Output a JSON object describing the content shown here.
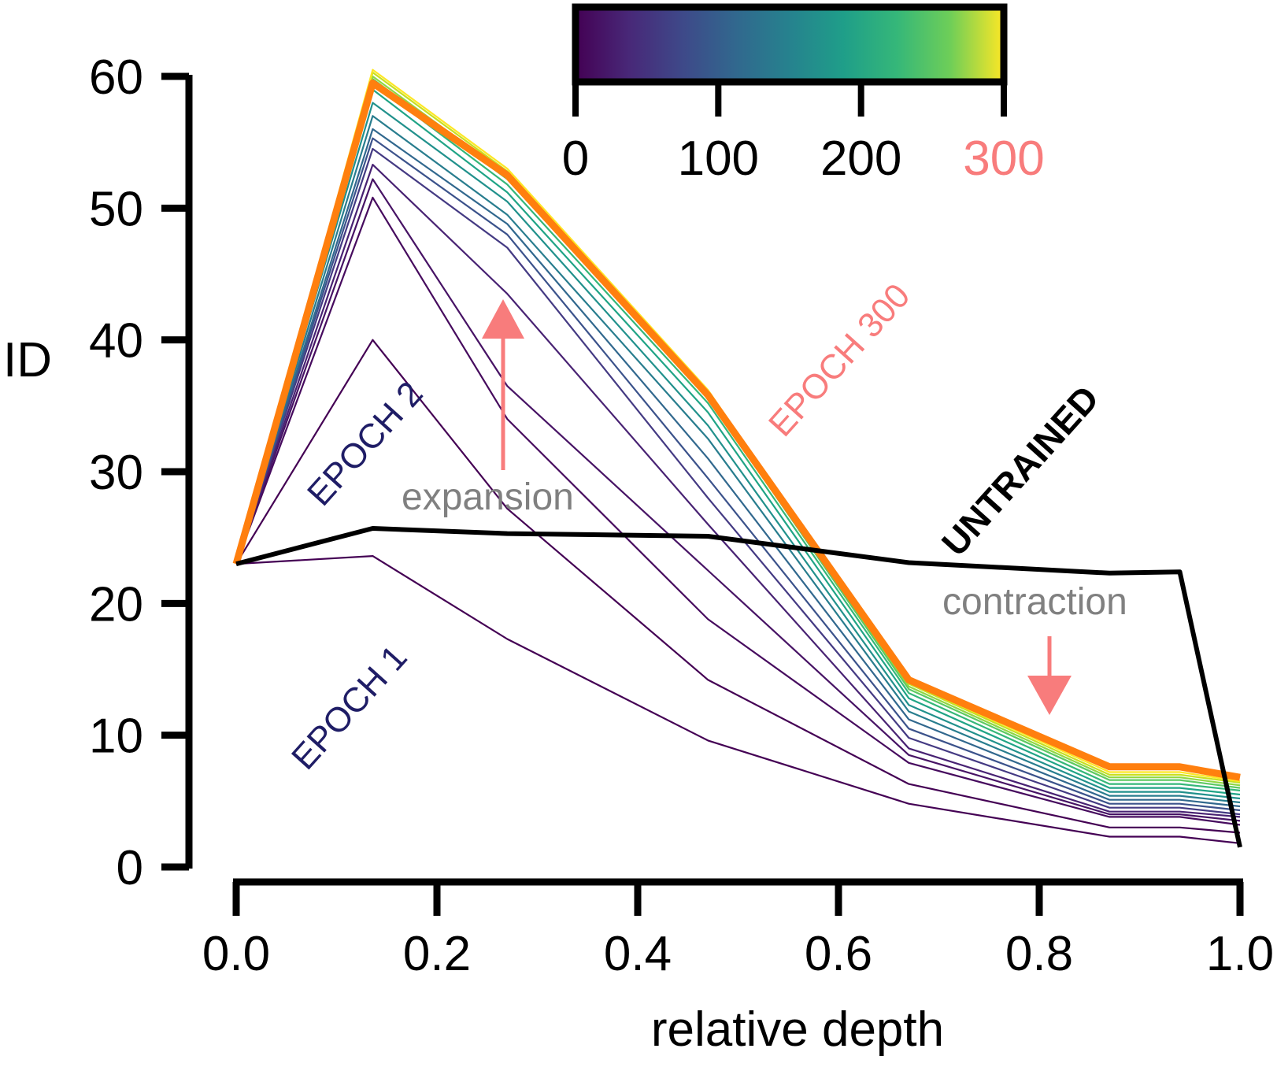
{
  "chart_data": {
    "type": "line",
    "xlabel": "relative depth",
    "ylabel": "ID",
    "xlim": [
      0,
      1
    ],
    "ylim": [
      0,
      60
    ],
    "x_ticks": [
      "0.0",
      "0.2",
      "0.4",
      "0.6",
      "0.8",
      "1.0"
    ],
    "y_ticks": [
      "0",
      "10",
      "20",
      "30",
      "40",
      "50",
      "60"
    ],
    "x": [
      0.0,
      0.136,
      0.27,
      0.47,
      0.67,
      0.87,
      0.94,
      1.0
    ],
    "series": [
      {
        "name": "UNTRAINED",
        "color": "#000000",
        "values": [
          23.0,
          25.7,
          25.3,
          25.1,
          23.1,
          22.3,
          22.4,
          1.5
        ]
      },
      {
        "name": "EPOCH 1",
        "color": "#440154",
        "values": [
          23.0,
          23.6,
          17.3,
          9.6,
          4.8,
          2.3,
          2.3,
          1.8
        ]
      },
      {
        "name": "EPOCH 2",
        "color": "#440154",
        "values": [
          23.0,
          40.0,
          27.2,
          14.2,
          6.3,
          3.0,
          3.0,
          2.6
        ]
      },
      {
        "color": "#460b5e",
        "values": [
          23.0,
          50.8,
          34.0,
          18.8,
          7.9,
          3.8,
          3.8,
          3.2
        ]
      },
      {
        "color": "#471365",
        "values": [
          23.0,
          52.2,
          36.5,
          22.5,
          8.5,
          4.0,
          4.0,
          3.5
        ]
      },
      {
        "color": "#482273",
        "values": [
          23.0,
          53.3,
          43.5,
          26.0,
          9.0,
          4.2,
          4.2,
          3.8
        ]
      },
      {
        "color": "#443a83",
        "values": [
          23.0,
          54.5,
          47.0,
          28.0,
          9.8,
          4.5,
          4.5,
          4.0
        ]
      },
      {
        "color": "#3b528b",
        "values": [
          23.0,
          55.3,
          48.0,
          29.5,
          10.5,
          4.8,
          4.8,
          4.3
        ]
      },
      {
        "color": "#31688e",
        "values": [
          23.0,
          56.0,
          48.8,
          31.0,
          11.2,
          5.1,
          5.1,
          4.6
        ]
      },
      {
        "color": "#287d8e",
        "values": [
          23.0,
          57.0,
          49.5,
          32.5,
          11.8,
          5.4,
          5.4,
          4.9
        ]
      },
      {
        "color": "#21918c",
        "values": [
          23.0,
          58.0,
          50.5,
          33.5,
          12.3,
          5.7,
          5.7,
          5.2
        ]
      },
      {
        "color": "#20a486",
        "values": [
          23.0,
          59.0,
          51.2,
          34.5,
          12.8,
          6.0,
          6.0,
          5.5
        ]
      },
      {
        "color": "#35b779",
        "values": [
          23.0,
          59.5,
          51.8,
          35.2,
          13.2,
          6.3,
          6.3,
          5.8
        ]
      },
      {
        "color": "#5ec962",
        "values": [
          23.0,
          59.8,
          52.2,
          35.6,
          13.5,
          6.6,
          6.6,
          6.0
        ]
      },
      {
        "color": "#90d743",
        "values": [
          23.0,
          60.0,
          52.5,
          35.8,
          13.7,
          6.8,
          6.8,
          6.2
        ]
      },
      {
        "color": "#c8e020",
        "values": [
          23.0,
          60.3,
          52.8,
          36.0,
          13.9,
          7.0,
          7.0,
          6.4
        ]
      },
      {
        "color": "#fde725",
        "values": [
          23.0,
          60.5,
          53.0,
          36.2,
          14.0,
          7.2,
          7.2,
          6.5
        ]
      },
      {
        "name": "EPOCH 300",
        "color": "#ff7f0e",
        "values": [
          23.0,
          59.5,
          52.5,
          35.8,
          14.2,
          7.6,
          7.6,
          6.8
        ]
      }
    ],
    "colorbar": {
      "ticks": [
        "0",
        "100",
        "200",
        "300"
      ],
      "range": [
        0,
        300
      ],
      "colormap": "viridis",
      "highlight_tick_color": "#f87c7c"
    },
    "annotations": {
      "epoch1": "EPOCH  1",
      "epoch2": "EPOCH  2",
      "epoch300": "EPOCH  300",
      "untrained": "UNTRAINED",
      "expansion": "expansion",
      "contraction": "contraction"
    },
    "colors": {
      "epoch_label": "#1f1d66",
      "epoch300_label": "#f87c7c",
      "annotation_gray": "#808080",
      "arrow": "#f87c7c"
    }
  }
}
